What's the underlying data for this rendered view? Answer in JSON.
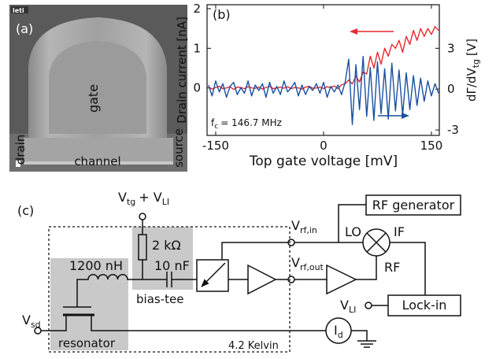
{
  "panel_a": {
    "label": "(a)",
    "logo": "leti",
    "gate": "gate",
    "drain": "drain",
    "channel": "channel",
    "source": "source"
  },
  "chart_data": {
    "type": "line",
    "panel_label": "(b)",
    "xlabel": "Top gate voltage [mV]",
    "ylabel": "Drain current [nA]",
    "y2label": [
      "dΓ/dV",
      "tg",
      "[V]"
    ],
    "annotation": [
      "f",
      "c",
      "= 146.7 MHz"
    ],
    "x": [
      -160,
      -155,
      -150,
      -145,
      -140,
      -135,
      -130,
      -125,
      -120,
      -115,
      -110,
      -105,
      -100,
      -95,
      -90,
      -85,
      -80,
      -75,
      -70,
      -65,
      -60,
      -55,
      -50,
      -45,
      -40,
      -35,
      -30,
      -25,
      -20,
      -15,
      -10,
      -5,
      0,
      5,
      10,
      15,
      20,
      25,
      30,
      35,
      40,
      45,
      50,
      55,
      60,
      65,
      70,
      75,
      80,
      85,
      90,
      95,
      100,
      105,
      110,
      115,
      120,
      125,
      130,
      135,
      140,
      145,
      150,
      155,
      160
    ],
    "xlim": [
      -162,
      161
    ],
    "xticks": [
      -150,
      0,
      150
    ],
    "ylim": [
      -1.2,
      2.1
    ],
    "yticks": [
      0,
      1,
      2
    ],
    "y2lim": [
      -3.4,
      6.2
    ],
    "y2ticks": [
      -3,
      0,
      3
    ],
    "series": [
      {
        "color": "#e8292e",
        "values": [
          0.02,
          -0.03,
          0.01,
          0.04,
          -0.02,
          0.0,
          0.03,
          -0.04,
          0.02,
          0.01,
          -0.02,
          0.03,
          0.0,
          -0.01,
          0.02,
          -0.03,
          0.01,
          0.04,
          -0.02,
          0.0,
          0.02,
          -0.01,
          0.03,
          -0.02,
          0.01,
          0.0,
          -0.03,
          0.02,
          0.04,
          -0.01,
          0.0,
          0.02,
          -0.02,
          0.03,
          0.01,
          0.05,
          -0.02,
          0.08,
          0.1,
          0.2,
          0.1,
          0.3,
          0.15,
          0.4,
          0.35,
          0.8,
          0.5,
          0.9,
          0.6,
          1.0,
          0.8,
          1.1,
          1.0,
          1.2,
          0.9,
          1.3,
          1.1,
          1.45,
          1.2,
          1.5,
          1.3,
          1.5,
          1.35,
          1.55,
          1.45
        ]
      },
      {
        "color": "#1a4fa0",
        "axis": "y2",
        "values": [
          0.3,
          -0.5,
          0.6,
          -0.2,
          0.4,
          -0.6,
          0.2,
          0.5,
          -0.4,
          0.1,
          -0.3,
          0.6,
          -0.5,
          0.3,
          -0.1,
          0.4,
          -0.6,
          0.5,
          -0.3,
          0.2,
          -0.4,
          0.6,
          -0.2,
          0.1,
          0.5,
          -0.5,
          0.3,
          -0.4,
          0.2,
          -0.1,
          0.4,
          -0.3,
          0.5,
          -0.6,
          0.2,
          -0.2,
          0.3,
          -0.4,
          0.5,
          2.2,
          -2.6,
          1.8,
          -1.5,
          2.4,
          -2.0,
          1.6,
          -2.3,
          2.0,
          -1.8,
          1.5,
          -2.2,
          1.9,
          -1.6,
          1.4,
          -1.9,
          1.2,
          -1.5,
          1.0,
          -1.2,
          0.8,
          -0.9,
          0.6,
          -0.5,
          0.4,
          -0.3
        ]
      }
    ]
  },
  "circuit": {
    "label": "(c)",
    "supply": [
      "V",
      "tg",
      "+ V",
      "LI"
    ],
    "resistor": "2 kΩ",
    "capacitor": "10 nF",
    "inductor": "1200 nH",
    "bias_tee": "bias-tee",
    "vsd": [
      "V",
      "sd"
    ],
    "resonator": "resonator",
    "temperature": "4.2 Kelvin",
    "current": [
      "I",
      "d"
    ],
    "rf_in": [
      "V",
      "rf,in"
    ],
    "rf_out": [
      "V",
      "rf,out"
    ],
    "rf_generator": "RF generator",
    "lo": "LO",
    "if": "IF",
    "rf": "RF",
    "vli": [
      "V",
      "LI"
    ],
    "lock_in": "Lock-in"
  }
}
